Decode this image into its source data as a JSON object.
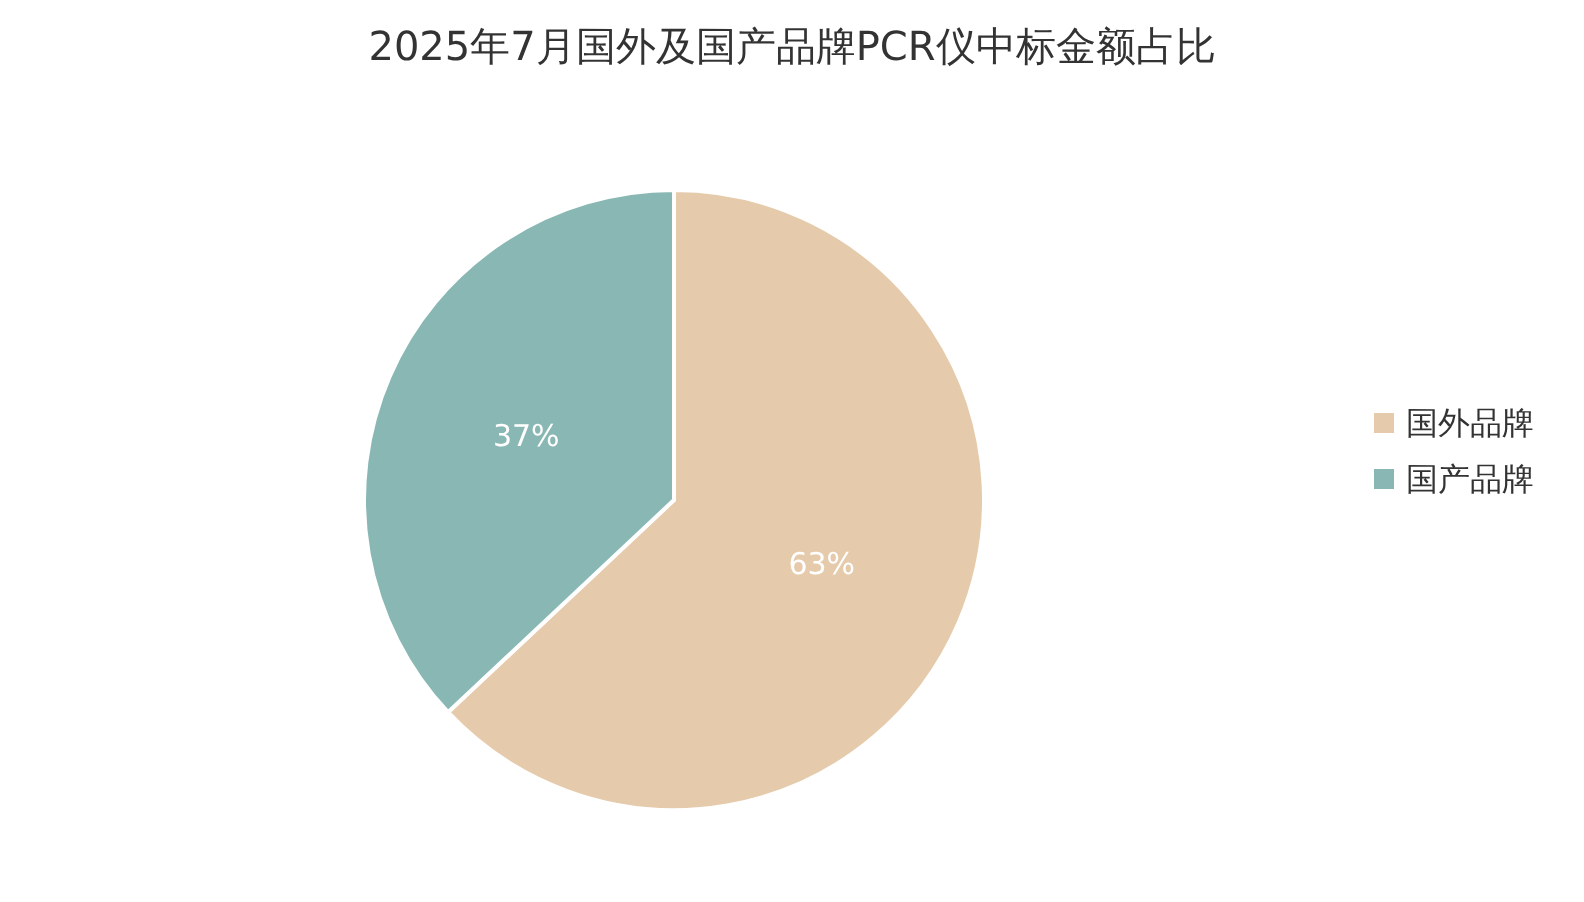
{
  "chart_data": {
    "type": "pie",
    "title": "2025年7月国外及国产品牌PCR仪中标金额占比",
    "categories": [
      "国外品牌",
      "国产品牌"
    ],
    "values": [
      63,
      37
    ],
    "colors": [
      "#e5cbab",
      "#89b8b4"
    ],
    "value_labels": [
      "63%",
      "37%"
    ],
    "legend": "right"
  }
}
